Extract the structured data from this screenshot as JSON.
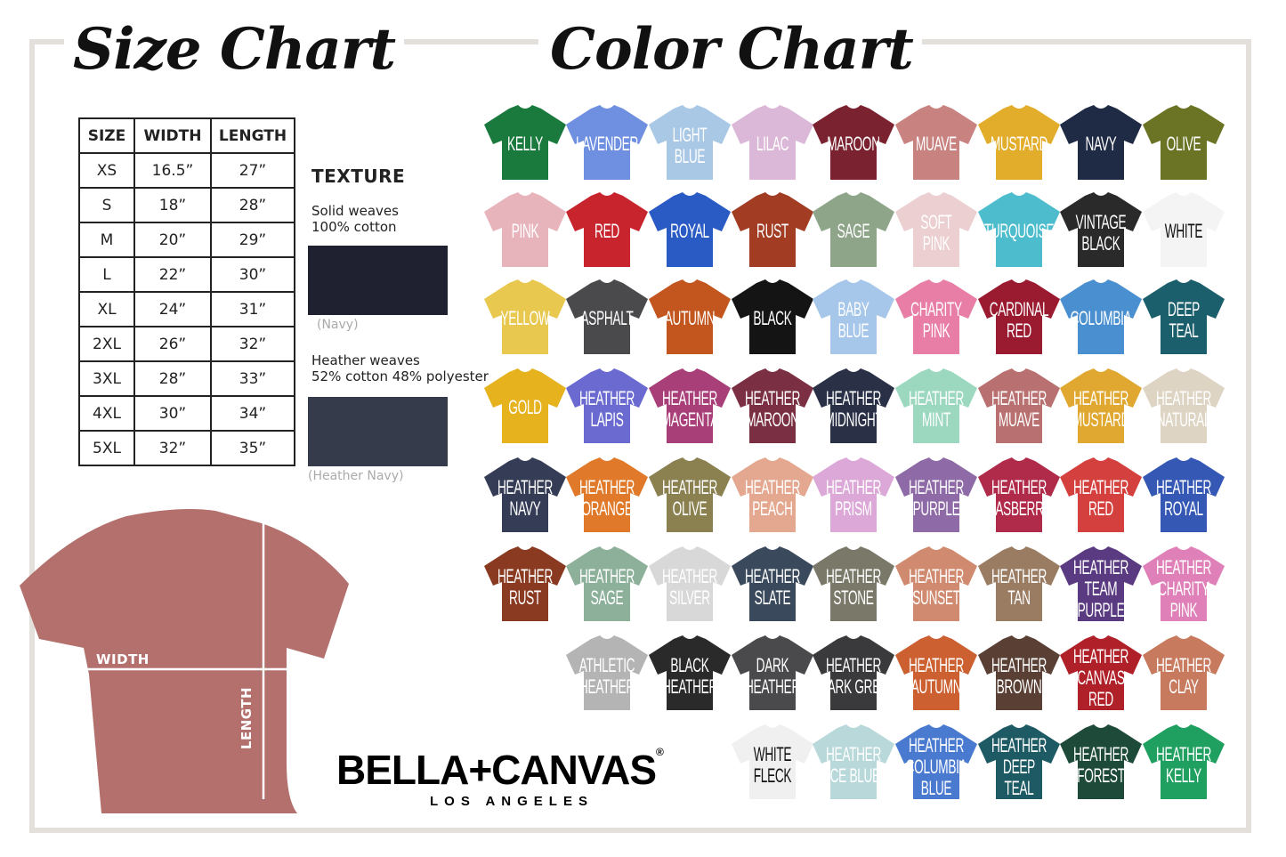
{
  "titles": {
    "size": "Size Chart",
    "color": "Color Chart"
  },
  "size_table": {
    "headers": [
      "SIZE",
      "WIDTH",
      "LENGTH"
    ],
    "rows": [
      [
        "XS",
        "16.5”",
        "27”"
      ],
      [
        "S",
        "18”",
        "28”"
      ],
      [
        "M",
        "20”",
        "29”"
      ],
      [
        "L",
        "22”",
        "30”"
      ],
      [
        "XL",
        "24”",
        "31”"
      ],
      [
        "2XL",
        "26”",
        "32”"
      ],
      [
        "3XL",
        "28”",
        "33”"
      ],
      [
        "4XL",
        "30”",
        "34”"
      ],
      [
        "5XL",
        "32”",
        "35”"
      ]
    ]
  },
  "texture": {
    "heading": "TEXTURE",
    "solid": {
      "line1": "Solid weaves",
      "line2": "100% cotton",
      "caption": "(Navy)",
      "color": "#1f2131"
    },
    "heather": {
      "line1": "Heather weaves",
      "line2": "52% cotton 48% polyester",
      "caption": "(Heather Navy)",
      "color": "#363b4b"
    }
  },
  "diagram": {
    "width_label": "WIDTH",
    "length_label": "LENGTH",
    "shirt_color": "#b3706d"
  },
  "brand": {
    "name": "BELLA+CANVAS",
    "sub": "LOS ANGELES",
    "mark": "®"
  },
  "colors": [
    [
      {
        "l": [
          "KELLY"
        ],
        "c": "#1a7a3e"
      },
      {
        "l": [
          "LAVENDER"
        ],
        "c": "#6f8fe0"
      },
      {
        "l": [
          "LIGHT",
          "BLUE"
        ],
        "c": "#a9c8e6"
      },
      {
        "l": [
          "LILAC"
        ],
        "c": "#dcb8d8"
      },
      {
        "l": [
          "MAROON"
        ],
        "c": "#7b2230"
      },
      {
        "l": [
          "MUAVE"
        ],
        "c": "#c88280"
      },
      {
        "l": [
          "MUSTARD"
        ],
        "c": "#e2ad2a"
      },
      {
        "l": [
          "NAVY"
        ],
        "c": "#1f2a44"
      },
      {
        "l": [
          "OLIVE"
        ],
        "c": "#6b7424"
      }
    ],
    [
      {
        "l": [
          "PINK"
        ],
        "c": "#e8b4bc"
      },
      {
        "l": [
          "RED"
        ],
        "c": "#c8242e"
      },
      {
        "l": [
          "ROYAL"
        ],
        "c": "#2a5bc4"
      },
      {
        "l": [
          "RUST"
        ],
        "c": "#a23d24"
      },
      {
        "l": [
          "SAGE"
        ],
        "c": "#8fa58a"
      },
      {
        "l": [
          "SOFT",
          "PINK"
        ],
        "c": "#eccfd0"
      },
      {
        "l": [
          "TURQUOISE"
        ],
        "c": "#4dbccc"
      },
      {
        "l": [
          "VINTAGE",
          "BLACK"
        ],
        "c": "#2a2a2a"
      },
      {
        "l": [
          "WHITE"
        ],
        "c": "#f4f4f4"
      }
    ],
    [
      {
        "l": [
          "YELLOW"
        ],
        "c": "#e8c84e"
      },
      {
        "l": [
          "ASPHALT"
        ],
        "c": "#4a4a4c"
      },
      {
        "l": [
          "AUTUMN"
        ],
        "c": "#c2561e"
      },
      {
        "l": [
          "BLACK"
        ],
        "c": "#141414"
      },
      {
        "l": [
          "BABY",
          "BLUE"
        ],
        "c": "#a6c6ea"
      },
      {
        "l": [
          "CHARITY",
          "PINK"
        ],
        "c": "#e87ea6"
      },
      {
        "l": [
          "CARDINAL",
          "RED"
        ],
        "c": "#9a1a30"
      },
      {
        "l": [
          "COLUMBIA"
        ],
        "c": "#4a90d0"
      },
      {
        "l": [
          "DEEP",
          "TEAL"
        ],
        "c": "#1c5f6c"
      }
    ],
    [
      {
        "l": [
          "GOLD"
        ],
        "c": "#e6b21e"
      },
      {
        "l": [
          "HEATHER",
          "LAPIS"
        ],
        "c": "#6a6ad0"
      },
      {
        "l": [
          "HEATHER",
          "MAGENTA"
        ],
        "c": "#a83f78"
      },
      {
        "l": [
          "HEATHER",
          "MAROON"
        ],
        "c": "#7a3042"
      },
      {
        "l": [
          "HEATHER",
          "MIDNIGHT"
        ],
        "c": "#2a3046"
      },
      {
        "l": [
          "HEATHER",
          "MINT"
        ],
        "c": "#9cd8c0"
      },
      {
        "l": [
          "HEATHER",
          "MUAVE"
        ],
        "c": "#b87070"
      },
      {
        "l": [
          "HEATHER",
          "MUSTARD"
        ],
        "c": "#e0a830"
      },
      {
        "l": [
          "HEATHER",
          "NATURAL"
        ],
        "c": "#ddd4c4"
      }
    ],
    [
      {
        "l": [
          "HEATHER",
          "NAVY"
        ],
        "c": "#353c56"
      },
      {
        "l": [
          "HEATHER",
          "ORANGE"
        ],
        "c": "#e07a2a"
      },
      {
        "l": [
          "HEATHER",
          "OLIVE"
        ],
        "c": "#8a8050"
      },
      {
        "l": [
          "HEATHER",
          "PEACH"
        ],
        "c": "#e4a890"
      },
      {
        "l": [
          "HEATHER",
          "PRISM"
        ],
        "c": "#dca8d8"
      },
      {
        "l": [
          "HEATHER",
          "PURPLE"
        ],
        "c": "#8e6aa6"
      },
      {
        "l": [
          "HEATHER",
          "RASBERRY"
        ],
        "c": "#b02a4a"
      },
      {
        "l": [
          "HEATHER",
          "RED"
        ],
        "c": "#d4403e"
      },
      {
        "l": [
          "HEATHER",
          "ROYAL"
        ],
        "c": "#3458b4"
      }
    ],
    [
      {
        "l": [
          "HEATHER",
          "RUST"
        ],
        "c": "#8a3a20"
      },
      {
        "l": [
          "HEATHER",
          "SAGE"
        ],
        "c": "#8cb09a"
      },
      {
        "l": [
          "HEATHER",
          "SILVER"
        ],
        "c": "#d8d8d8"
      },
      {
        "l": [
          "HEATHER",
          "SLATE"
        ],
        "c": "#3a4a5c"
      },
      {
        "l": [
          "HEATHER",
          "STONE"
        ],
        "c": "#7a7868"
      },
      {
        "l": [
          "HEATHER",
          "SUNSET"
        ],
        "c": "#d08a70"
      },
      {
        "l": [
          "HEATHER",
          "TAN"
        ],
        "c": "#9a7c62"
      },
      {
        "l": [
          "HEATHER",
          "TEAM",
          "PURPLE"
        ],
        "c": "#5a3a80"
      },
      {
        "l": [
          "HEATHER",
          "CHARITY",
          "PINK"
        ],
        "c": "#e080b8"
      }
    ],
    [
      null,
      {
        "l": [
          "ATHLETIC",
          "HEATHER"
        ],
        "c": "#b4b4b4"
      },
      {
        "l": [
          "BLACK",
          "HEATHER"
        ],
        "c": "#2a2a2a"
      },
      {
        "l": [
          "DARK",
          "HEATHER"
        ],
        "c": "#4a4a4c"
      },
      {
        "l": [
          "HEATHER",
          "DARK GREY"
        ],
        "c": "#3a3a3c"
      },
      {
        "l": [
          "HEATHER",
          "AUTUMN"
        ],
        "c": "#cc6030"
      },
      {
        "l": [
          "HEATHER",
          "BROWN"
        ],
        "c": "#5a4034"
      },
      {
        "l": [
          "HEATHER",
          "CANVAS",
          "RED"
        ],
        "c": "#b02028"
      },
      {
        "l": [
          "HEATHER",
          "CLAY"
        ],
        "c": "#c87a5e"
      }
    ],
    [
      null,
      null,
      null,
      {
        "l": [
          "WHITE",
          "FLECK"
        ],
        "c": "#f0f0f0"
      },
      {
        "l": [
          "HEATHER",
          "ICE BLUE"
        ],
        "c": "#b8d8da"
      },
      {
        "l": [
          "HEATHER",
          "COLUMBIA",
          "BLUE"
        ],
        "c": "#4a7ad0"
      },
      {
        "l": [
          "HEATHER",
          "DEEP",
          "TEAL"
        ],
        "c": "#1e5a64"
      },
      {
        "l": [
          "HEATHER",
          "FOREST"
        ],
        "c": "#1e4a3a"
      },
      {
        "l": [
          "HEATHER",
          "KELLY"
        ],
        "c": "#20a060"
      }
    ]
  ]
}
